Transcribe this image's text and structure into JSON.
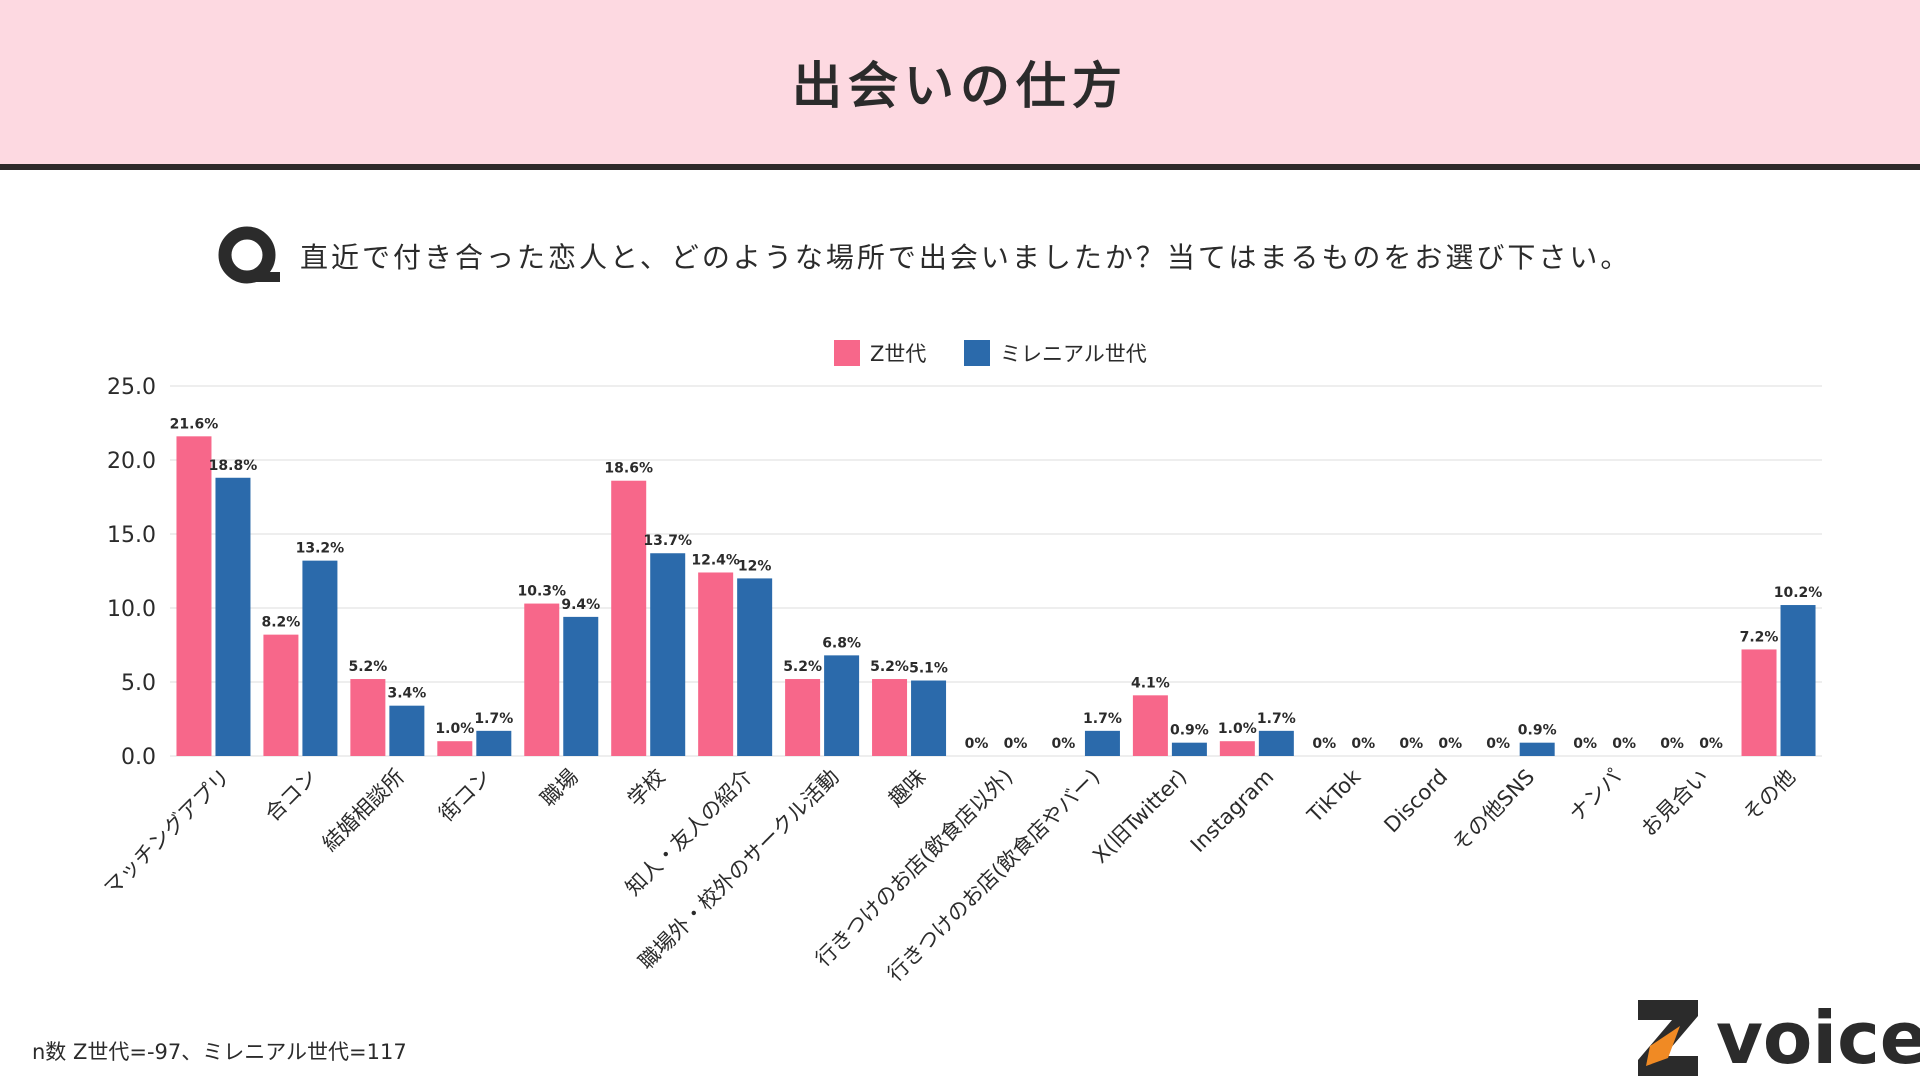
{
  "header": {
    "title": "出会いの仕方"
  },
  "question": {
    "text": "直近で付き合った恋人と、どのような場所で出会いましたか？当てはまるものをお選び下さい。"
  },
  "footnote": "n数 Z世代=-97、ミレニアル世代=117",
  "logo": {
    "text": "voice"
  },
  "colors": {
    "z": "#f7678a",
    "m": "#2b6aab",
    "grid": "#dcdcdc",
    "header_bg": "#fdd9e1"
  },
  "chart_data": {
    "type": "bar",
    "title": "",
    "xlabel": "",
    "ylabel": "",
    "ylim": [
      0,
      25
    ],
    "yticks": [
      "0.0",
      "5.0",
      "10.0",
      "15.0",
      "20.0",
      "25.0"
    ],
    "legend_position": "top-center",
    "categories": [
      "マッチングアプリ",
      "合コン",
      "結婚相談所",
      "街コン",
      "職場",
      "学校",
      "知人・友人の紹介",
      "職場外・校外のサークル活動",
      "趣味",
      "行きつけのお店(飲食店以外)",
      "行きつけのお店(飲食店やバー)",
      "X(旧Twitter)",
      "Instagram",
      "TikTok",
      "Discord",
      "その他SNS",
      "ナンパ",
      "お見合い",
      "その他"
    ],
    "series": [
      {
        "name": "Z世代",
        "values": [
          21.6,
          8.2,
          5.2,
          1.0,
          10.3,
          18.6,
          12.4,
          5.2,
          5.2,
          0,
          0,
          4.1,
          1.0,
          0,
          0,
          0,
          0,
          0,
          7.2
        ],
        "labels": [
          "21.6%",
          "8.2%",
          "5.2%",
          "1.0%",
          "10.3%",
          "18.6%",
          "12.4%",
          "5.2%",
          "5.2%",
          "0%",
          "0%",
          "4.1%",
          "1.0%",
          "0%",
          "0%",
          "0%",
          "0%",
          "0%",
          "7.2%"
        ]
      },
      {
        "name": "ミレニアル世代",
        "values": [
          18.8,
          13.2,
          3.4,
          1.7,
          9.4,
          13.7,
          12,
          6.8,
          5.1,
          0,
          1.7,
          0.9,
          1.7,
          0,
          0,
          0.9,
          0,
          0,
          10.2
        ],
        "labels": [
          "18.8%",
          "13.2%",
          "3.4%",
          "1.7%",
          "9.4%",
          "13.7%",
          "12%",
          "6.8%",
          "5.1%",
          "0%",
          "1.7%",
          "0.9%",
          "1.7%",
          "0%",
          "0%",
          "0.9%",
          "0%",
          "0%",
          "10.2%"
        ]
      }
    ]
  }
}
